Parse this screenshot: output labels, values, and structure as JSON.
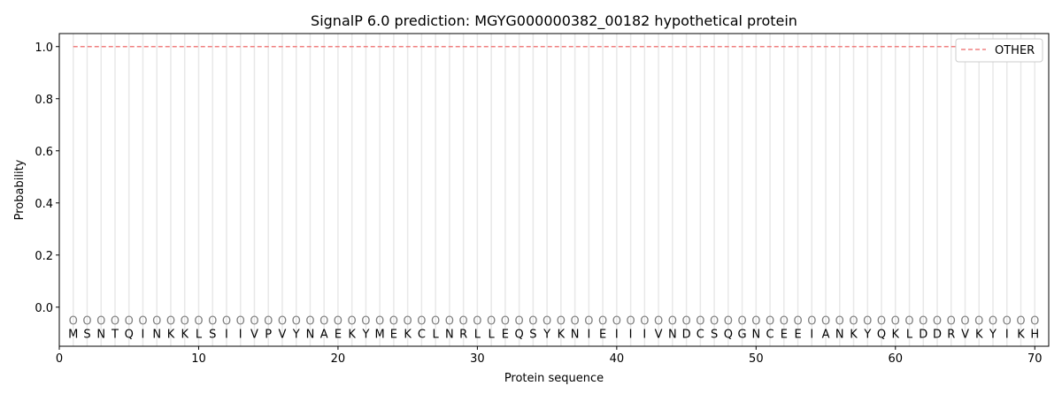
{
  "chart_data": {
    "type": "line",
    "title": "SignalP 6.0 prediction: MGYG000000382_00182 hypothetical protein",
    "xlabel": "Protein sequence",
    "ylabel": "Probability",
    "xlim": [
      0,
      71
    ],
    "ylim": [
      -0.15,
      1.05
    ],
    "xticks": [
      0,
      10,
      20,
      30,
      40,
      50,
      60,
      70
    ],
    "yticks": [
      0.0,
      0.2,
      0.4,
      0.6,
      0.8,
      1.0
    ],
    "ytick_labels": [
      "0.0",
      "0.2",
      "0.4",
      "0.6",
      "0.8",
      "1.0"
    ],
    "grid": "vertical lines at each residue",
    "legend_position": "top-right",
    "sequence": [
      "M",
      "S",
      "N",
      "T",
      "Q",
      "I",
      "N",
      "K",
      "K",
      "L",
      "S",
      "I",
      "I",
      "V",
      "P",
      "V",
      "Y",
      "N",
      "A",
      "E",
      "K",
      "Y",
      "M",
      "E",
      "K",
      "C",
      "L",
      "N",
      "R",
      "L",
      "L",
      "E",
      "Q",
      "S",
      "Y",
      "K",
      "N",
      "I",
      "E",
      "I",
      "I",
      "I",
      "V",
      "N",
      "D",
      "C",
      "S",
      "Q",
      "G",
      "N",
      "C",
      "E",
      "E",
      "I",
      "A",
      "N",
      "K",
      "Y",
      "Q",
      "K",
      "L",
      "D",
      "D",
      "R",
      "V",
      "K",
      "Y",
      "I",
      "K",
      "H"
    ],
    "region_label": "O",
    "series": [
      {
        "name": "OTHER",
        "color": "#f08080",
        "style": "dashed",
        "x_start": 1,
        "x_end": 70,
        "value": 1.0
      }
    ]
  }
}
